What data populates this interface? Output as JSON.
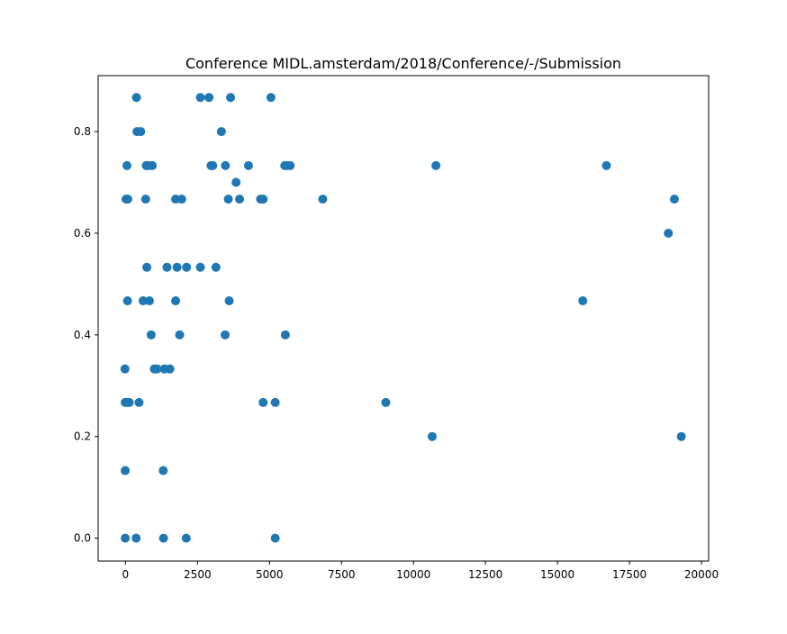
{
  "chart_data": {
    "type": "scatter",
    "title": "Conference MIDL.amsterdam/2018/Conference/-/Submission",
    "xlabel": "",
    "ylabel": "",
    "xlim": [
      -950,
      20250
    ],
    "ylim": [
      -0.045,
      0.91
    ],
    "xticks": [
      0,
      2500,
      5000,
      7500,
      10000,
      12500,
      15000,
      17500,
      20000
    ],
    "yticks": [
      0.0,
      0.2,
      0.4,
      0.6,
      0.8
    ],
    "grid": false,
    "legend": "none",
    "marker_color": "#1f77b4",
    "points": [
      [
        380,
        0.867
      ],
      [
        2600,
        0.867
      ],
      [
        2900,
        0.867
      ],
      [
        3650,
        0.867
      ],
      [
        5050,
        0.867
      ],
      [
        400,
        0.8
      ],
      [
        530,
        0.8
      ],
      [
        3330,
        0.8
      ],
      [
        50,
        0.733
      ],
      [
        720,
        0.733
      ],
      [
        800,
        0.733
      ],
      [
        930,
        0.733
      ],
      [
        2970,
        0.733
      ],
      [
        3030,
        0.733
      ],
      [
        3470,
        0.733
      ],
      [
        4270,
        0.733
      ],
      [
        5530,
        0.733
      ],
      [
        5600,
        0.733
      ],
      [
        5720,
        0.733
      ],
      [
        10780,
        0.733
      ],
      [
        16700,
        0.733
      ],
      [
        3840,
        0.7
      ],
      [
        20,
        0.667
      ],
      [
        80,
        0.667
      ],
      [
        700,
        0.667
      ],
      [
        1740,
        0.667
      ],
      [
        1950,
        0.667
      ],
      [
        3570,
        0.667
      ],
      [
        3960,
        0.667
      ],
      [
        4690,
        0.667
      ],
      [
        4780,
        0.667
      ],
      [
        6850,
        0.667
      ],
      [
        19060,
        0.667
      ],
      [
        18850,
        0.6
      ],
      [
        740,
        0.533
      ],
      [
        1440,
        0.533
      ],
      [
        1790,
        0.533
      ],
      [
        2120,
        0.533
      ],
      [
        2600,
        0.533
      ],
      [
        3140,
        0.533
      ],
      [
        70,
        0.467
      ],
      [
        610,
        0.467
      ],
      [
        830,
        0.467
      ],
      [
        1740,
        0.467
      ],
      [
        3600,
        0.467
      ],
      [
        15880,
        0.467
      ],
      [
        890,
        0.4
      ],
      [
        1880,
        0.4
      ],
      [
        3460,
        0.4
      ],
      [
        5550,
        0.4
      ],
      [
        -20,
        0.333
      ],
      [
        1000,
        0.333
      ],
      [
        1090,
        0.333
      ],
      [
        1350,
        0.333
      ],
      [
        1540,
        0.333
      ],
      [
        -10,
        0.267
      ],
      [
        60,
        0.267
      ],
      [
        130,
        0.267
      ],
      [
        470,
        0.267
      ],
      [
        4780,
        0.267
      ],
      [
        5200,
        0.267
      ],
      [
        9040,
        0.267
      ],
      [
        10650,
        0.2
      ],
      [
        19300,
        0.2
      ],
      [
        -10,
        0.133
      ],
      [
        1310,
        0.133
      ],
      [
        -10,
        0.0
      ],
      [
        370,
        0.0
      ],
      [
        1320,
        0.0
      ],
      [
        2110,
        0.0
      ],
      [
        5200,
        0.0
      ]
    ]
  }
}
